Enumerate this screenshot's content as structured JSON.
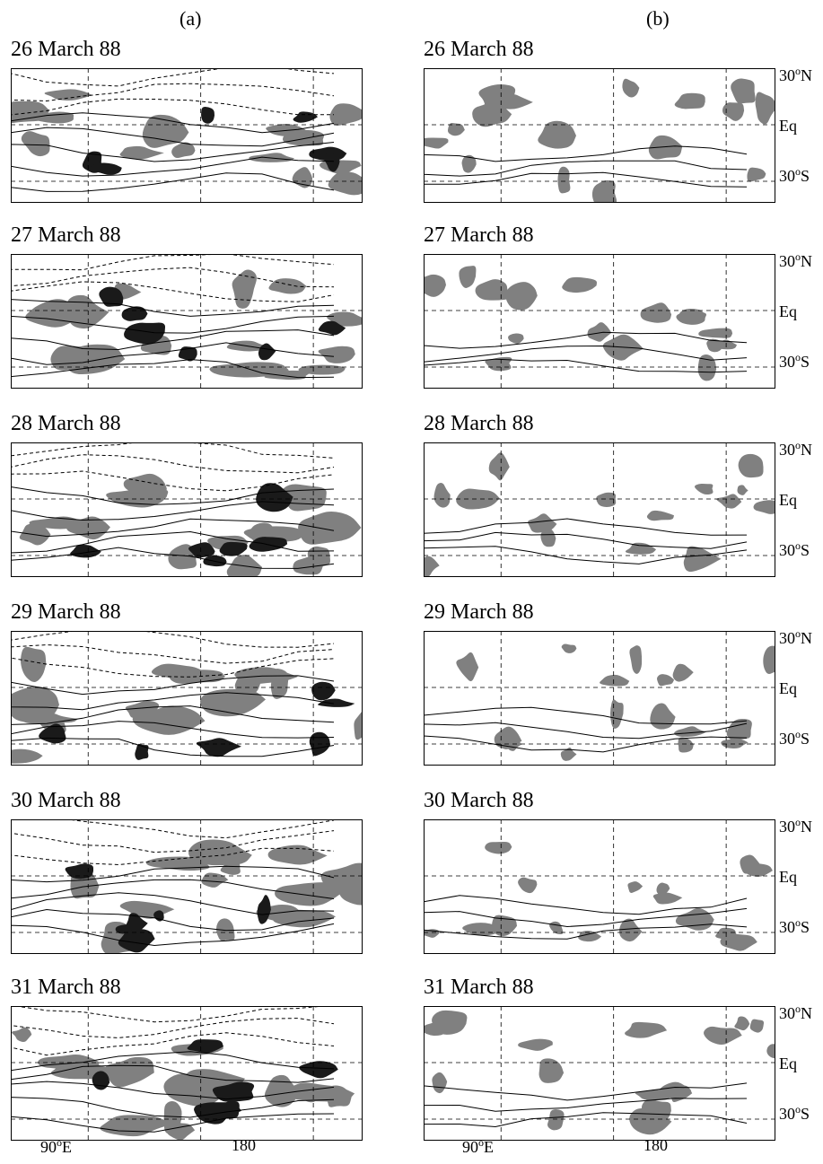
{
  "columns": [
    {
      "label": "(a)"
    },
    {
      "label": "(b)"
    }
  ],
  "dates": [
    "26 March 88",
    "27 March 88",
    "28 March 88",
    "29 March 88",
    "30 March 88",
    "31 March 88"
  ],
  "lat_labels": {
    "n": "30",
    "n_suffix": "N",
    "eq": "Eq",
    "s": "30",
    "s_suffix": "S",
    "deg": "o"
  },
  "lon_labels": {
    "l90": "90",
    "l90_suffix": "E",
    "l180": "180",
    "deg": "o"
  },
  "colors": {
    "heavy": "#1a1a1a",
    "light": "#808080",
    "line": "#000000"
  }
}
